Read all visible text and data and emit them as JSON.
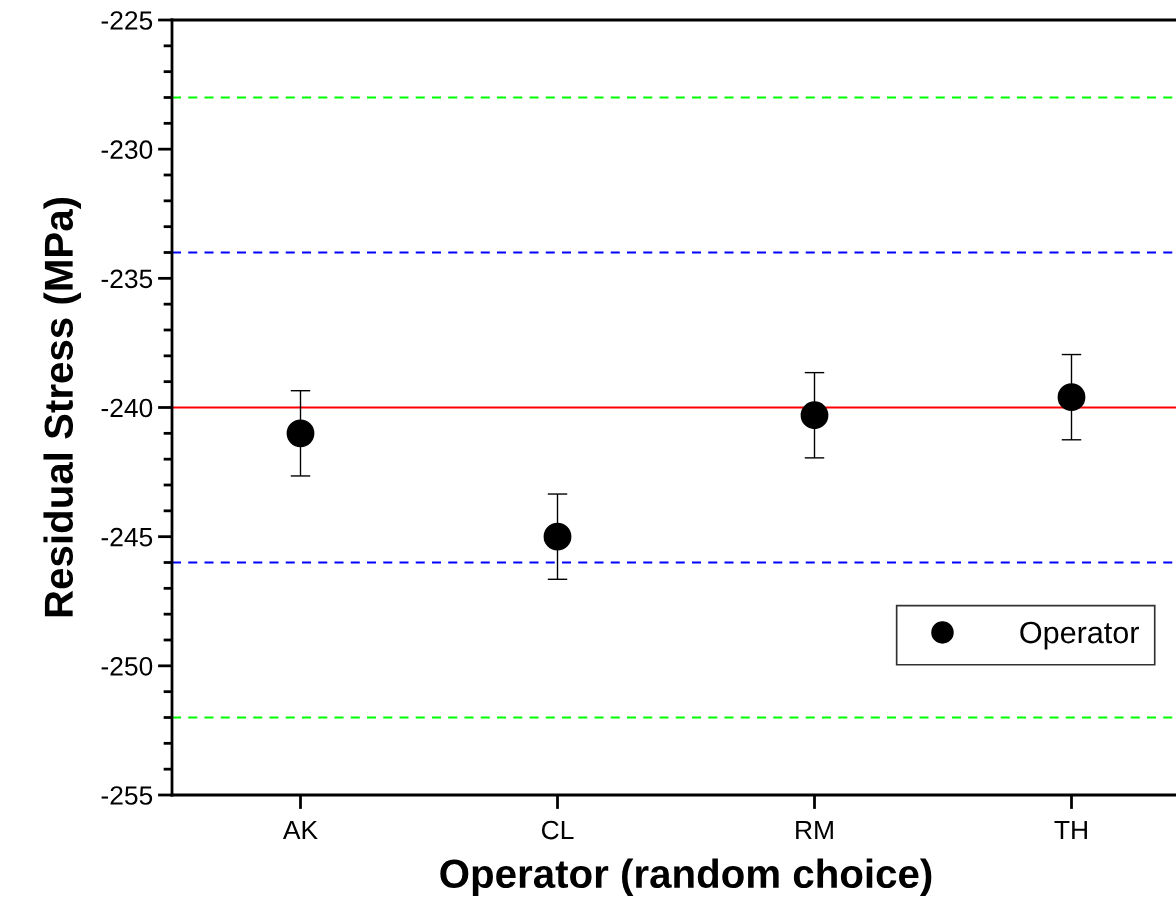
{
  "chart_data": {
    "type": "scatter",
    "xlabel": "Operator (random choice)",
    "ylabel": "Residual Stress (MPa)",
    "categories": [
      "AK",
      "CL",
      "RM",
      "TH"
    ],
    "series": [
      {
        "name": "Operator",
        "color": "#000000",
        "values": [
          -241.0,
          -245.0,
          -240.3,
          -239.6
        ],
        "errors": [
          1.65,
          1.65,
          1.65,
          1.65
        ]
      }
    ],
    "ylim": [
      -255,
      -225
    ],
    "yticks": [
      -255,
      -250,
      -245,
      -240,
      -235,
      -230,
      -225
    ],
    "ref_lines": [
      {
        "axis": "y",
        "value": -228,
        "color": "#00ff00",
        "line_style": "dashed"
      },
      {
        "axis": "y",
        "value": -234,
        "color": "#0000ff",
        "line_style": "dashed"
      },
      {
        "axis": "y",
        "value": -240,
        "color": "#ff0000",
        "line_style": "solid"
      },
      {
        "axis": "y",
        "value": -246,
        "color": "#0000ff",
        "line_style": "dashed"
      },
      {
        "axis": "y",
        "value": -252,
        "color": "#00ff00",
        "line_style": "dashed"
      }
    ],
    "marker": "circle",
    "legend": "bottom right",
    "grid": false
  }
}
